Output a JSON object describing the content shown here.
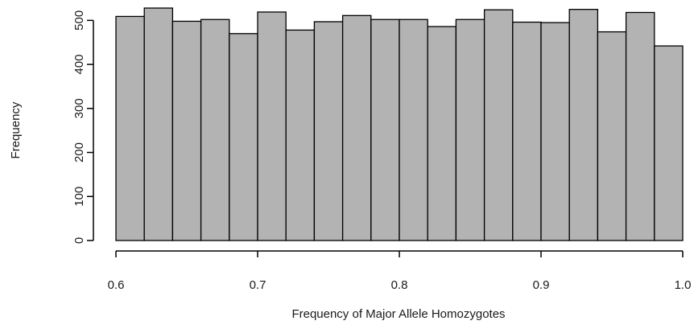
{
  "chart_data": {
    "type": "bar",
    "subtype": "histogram",
    "title": "",
    "xlabel": "Frequency of Major Allele Homozygotes",
    "ylabel": "Frequency",
    "bin_edges": [
      0.6,
      0.62,
      0.64,
      0.66,
      0.68,
      0.7,
      0.72,
      0.74,
      0.76,
      0.78,
      0.8,
      0.82,
      0.84,
      0.86,
      0.88,
      0.9,
      0.92,
      0.94,
      0.96,
      0.98,
      1.0
    ],
    "values": [
      509,
      528,
      498,
      502,
      470,
      519,
      478,
      497,
      511,
      502,
      502,
      486,
      502,
      524,
      496,
      495,
      525,
      474,
      518,
      442
    ],
    "xlim": [
      0.6,
      1.0
    ],
    "ylim": [
      0,
      528
    ],
    "x_ticks": [
      0.6,
      0.7,
      0.8,
      0.9,
      1.0
    ],
    "x_tick_labels": [
      "0.6",
      "0.7",
      "0.8",
      "0.9",
      "1.0"
    ],
    "y_ticks": [
      0,
      100,
      200,
      300,
      400,
      500
    ],
    "y_tick_labels": [
      "0",
      "100",
      "200",
      "300",
      "400",
      "500"
    ],
    "bar_fill": "#b3b3b3",
    "bar_stroke": "#000000",
    "grid": false,
    "legend": "none"
  }
}
